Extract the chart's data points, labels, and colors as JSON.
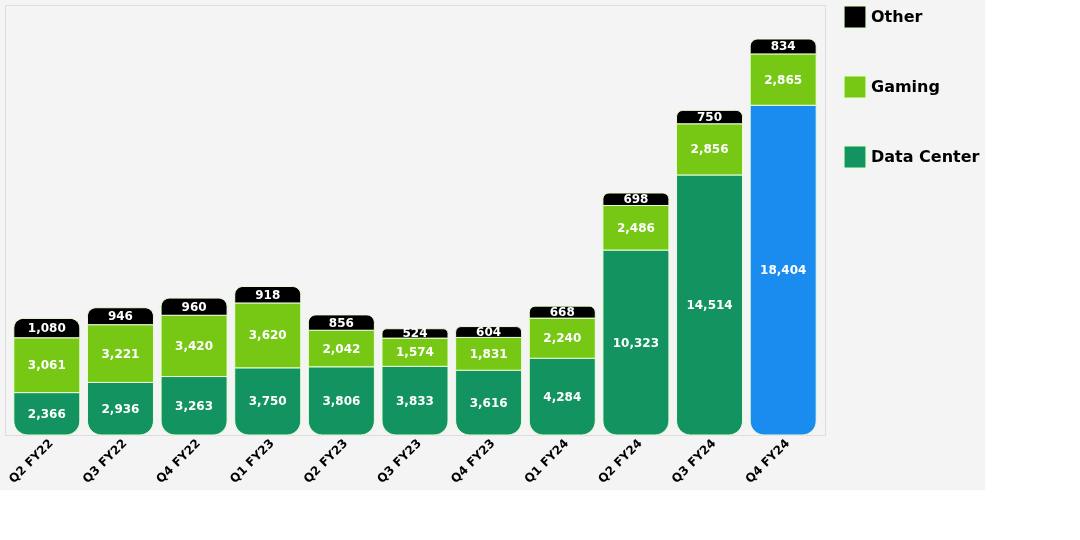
{
  "chart_data": {
    "type": "bar",
    "stacked": true,
    "legend": "right",
    "tick_labels": "x",
    "categories": [
      "Q2 FY22",
      "Q3 FY22",
      "Q4 FY22",
      "Q1 FY23",
      "Q2 FY23",
      "Q3 FY23",
      "Q4 FY23",
      "Q1 FY24",
      "Q2 FY24",
      "Q3 FY24",
      "Q4 FY24"
    ],
    "series": [
      {
        "name": "Data Center",
        "color": "#12935f",
        "colors": [
          "#12935f",
          "#12935f",
          "#12935f",
          "#12935f",
          "#12935f",
          "#12935f",
          "#12935f",
          "#12935f",
          "#12935f",
          "#12935f",
          "#1a8cf0"
        ],
        "values": [
          2366,
          2936,
          3263,
          3750,
          3806,
          3833,
          3616,
          4284,
          10323,
          14514,
          18404
        ],
        "value_labels": [
          "2,366",
          "2,936",
          "3,263",
          "3,750",
          "3,806",
          "3,833",
          "3,616",
          "4,284",
          "10,323",
          "14,514",
          "18,404"
        ]
      },
      {
        "name": "Gaming",
        "color": "#76c814",
        "values": [
          3061,
          3221,
          3420,
          3620,
          2042,
          1574,
          1831,
          2240,
          2486,
          2856,
          2865
        ],
        "value_labels": [
          "3,061",
          "3,221",
          "3,420",
          "3,620",
          "2,042",
          "1,574",
          "1,831",
          "2,240",
          "2,486",
          "2,856",
          "2,865"
        ]
      },
      {
        "name": "Other",
        "color": "#000000",
        "values": [
          1080,
          946,
          960,
          918,
          856,
          524,
          604,
          668,
          698,
          750,
          834
        ],
        "value_labels": [
          "1,080",
          "946",
          "960",
          "918",
          "856",
          "524",
          "604",
          "668",
          "698",
          "750",
          "834"
        ]
      }
    ]
  }
}
